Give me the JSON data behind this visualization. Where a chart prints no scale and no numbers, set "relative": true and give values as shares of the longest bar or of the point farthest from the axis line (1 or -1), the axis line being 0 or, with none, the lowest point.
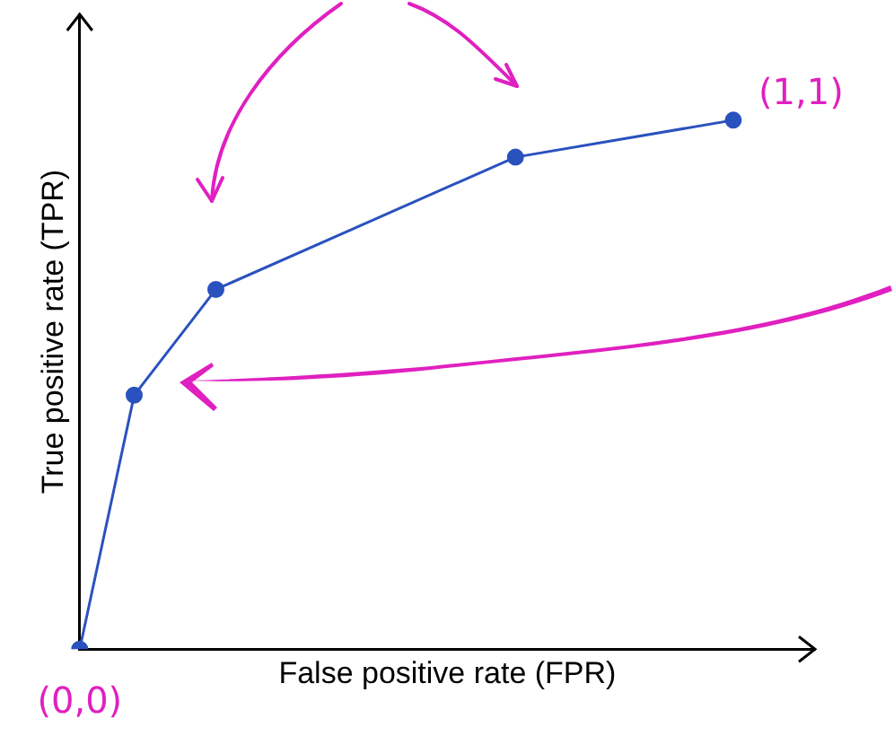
{
  "chart_data": {
    "type": "line",
    "relative": true,
    "xlabel": "False positive rate (FPR)",
    "ylabel": "True positive rate (TPR)",
    "color": "#2a52be",
    "marker": "circle",
    "categories": [
      null,
      null,
      null,
      null,
      null,
      null,
      null,
      null,
      null,
      null,
      null,
      null,
      null,
      null,
      null,
      null,
      null,
      null,
      null,
      null,
      null,
      null,
      null,
      null,
      null,
      null,
      null,
      null
    ],
    "values": [
      0,
      null,
      0.48,
      null,
      null,
      0.68,
      null,
      null,
      null,
      null,
      null,
      null,
      null,
      null,
      null,
      null,
      0.93,
      null,
      null,
      null,
      null,
      null,
      null,
      null,
      1,
      null,
      null,
      null
    ],
    "annotations": [
      "(0,0)",
      "(1,1)"
    ]
  }
}
